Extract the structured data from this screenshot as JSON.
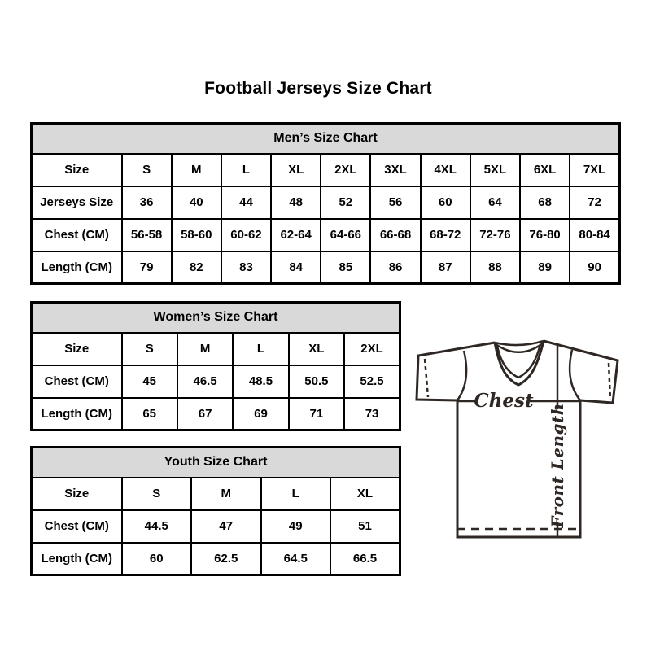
{
  "page": {
    "title": "Football Jerseys Size Chart"
  },
  "tables": [
    {
      "title": "Men’s Size Chart",
      "rows": [
        [
          "Size",
          "S",
          "M",
          "L",
          "XL",
          "2XL",
          "3XL",
          "4XL",
          "5XL",
          "6XL",
          "7XL"
        ],
        [
          "Jerseys Size",
          "36",
          "40",
          "44",
          "48",
          "52",
          "56",
          "60",
          "64",
          "68",
          "72"
        ],
        [
          "Chest (CM)",
          "56-58",
          "58-60",
          "60-62",
          "62-64",
          "64-66",
          "66-68",
          "68-72",
          "72-76",
          "76-80",
          "80-84"
        ],
        [
          "Length (CM)",
          "79",
          "82",
          "83",
          "84",
          "85",
          "86",
          "87",
          "88",
          "89",
          "90"
        ]
      ]
    },
    {
      "title": "Women’s Size Chart",
      "rows": [
        [
          "Size",
          "S",
          "M",
          "L",
          "XL",
          "2XL"
        ],
        [
          "Chest (CM)",
          "45",
          "46.5",
          "48.5",
          "50.5",
          "52.5"
        ],
        [
          "Length (CM)",
          "65",
          "67",
          "69",
          "71",
          "73"
        ]
      ]
    },
    {
      "title": "Youth Size Chart",
      "rows": [
        [
          "Size",
          "S",
          "M",
          "L",
          "XL"
        ],
        [
          "Chest (CM)",
          "44.5",
          "47",
          "49",
          "51"
        ],
        [
          "Length (CM)",
          "60",
          "62.5",
          "64.5",
          "66.5"
        ]
      ]
    }
  ],
  "diagram": {
    "chest_label": "Chest",
    "front_length_label": "Front Length"
  },
  "colors": {
    "header_bg": "#d9d9d9",
    "border": "#000000",
    "jersey_stroke": "#2e2723"
  }
}
